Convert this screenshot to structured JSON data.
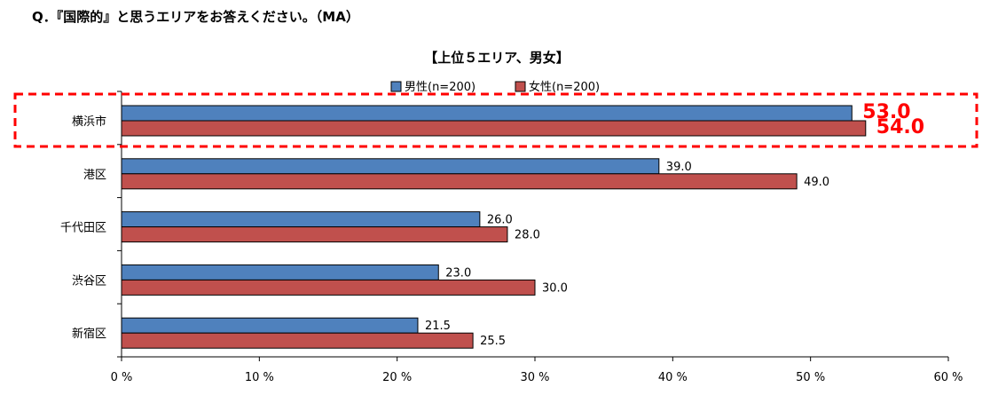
{
  "question": "Q．『国際的』と思うエリアをお答えください。（MA）",
  "chart_data": {
    "type": "bar",
    "orientation": "horizontal",
    "title": "【上位５エリア、男女】",
    "categories": [
      "横浜市",
      "港区",
      "千代田区",
      "渋谷区",
      "新宿区"
    ],
    "series": [
      {
        "name": "男性(n=200)",
        "color": "#4f81bd",
        "values": [
          53.0,
          39.0,
          26.0,
          23.0,
          21.5
        ]
      },
      {
        "name": "女性(n=200)",
        "color": "#c0504d",
        "values": [
          54.0,
          49.0,
          28.0,
          30.0,
          25.5
        ]
      }
    ],
    "xlim": [
      0,
      60
    ],
    "xticks": [
      "0 %",
      "10 %",
      "20 %",
      "30 %",
      "40 %",
      "50 %",
      "60 %"
    ],
    "legend_position": "top",
    "grid": false,
    "highlight": {
      "category": "横浜市",
      "color": "#ff0000"
    }
  }
}
